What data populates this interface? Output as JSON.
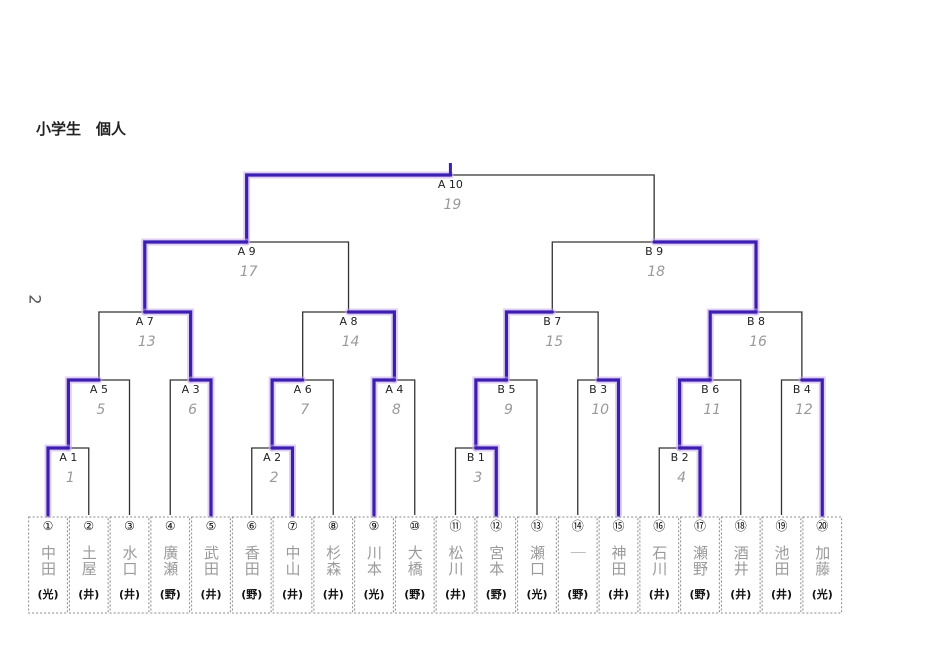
{
  "title": "小学生　個人",
  "margin_mark": "2",
  "colors": {
    "line": "#333333",
    "winner": "#3a1fb0",
    "winner_glow": "#c9a6ee",
    "handwriting": "#9a9a9a",
    "box": "#888888"
  },
  "players": [
    {
      "num": "①",
      "name": "中田",
      "team": "光"
    },
    {
      "num": "②",
      "name": "土屋",
      "team": "井"
    },
    {
      "num": "③",
      "name": "水口",
      "team": "井"
    },
    {
      "num": "④",
      "name": "廣瀬",
      "team": "野"
    },
    {
      "num": "⑤",
      "name": "武田",
      "team": "井"
    },
    {
      "num": "⑥",
      "name": "香田",
      "team": "野"
    },
    {
      "num": "⑦",
      "name": "中山",
      "team": "井"
    },
    {
      "num": "⑧",
      "name": "杉森",
      "team": "井"
    },
    {
      "num": "⑨",
      "name": "川本",
      "team": "光"
    },
    {
      "num": "⑩",
      "name": "大橋",
      "team": "野"
    },
    {
      "num": "⑪",
      "name": "松川",
      "team": "井"
    },
    {
      "num": "⑫",
      "name": "宮本",
      "team": "野"
    },
    {
      "num": "⑬",
      "name": "瀬口",
      "team": "光"
    },
    {
      "num": "⑭",
      "name": "｜",
      "team": "野"
    },
    {
      "num": "⑮",
      "name": "神田",
      "team": "井"
    },
    {
      "num": "⑯",
      "name": "石川",
      "team": "井"
    },
    {
      "num": "⑰",
      "name": "瀬野",
      "team": "野"
    },
    {
      "num": "⑱",
      "name": "酒井",
      "team": "井"
    },
    {
      "num": "⑲",
      "name": "池田",
      "team": "井"
    },
    {
      "num": "⑳",
      "name": "加藤",
      "team": "光"
    }
  ],
  "matches": [
    {
      "id": "A1",
      "label": "A 1",
      "order": "1"
    },
    {
      "id": "A2",
      "label": "A 2",
      "order": "2"
    },
    {
      "id": "B1",
      "label": "B 1",
      "order": "3"
    },
    {
      "id": "B2",
      "label": "B 2",
      "order": "4"
    },
    {
      "id": "A5",
      "label": "A 5",
      "order": "5"
    },
    {
      "id": "A3",
      "label": "A 3",
      "order": "6"
    },
    {
      "id": "A6",
      "label": "A 6",
      "order": "7"
    },
    {
      "id": "A4",
      "label": "A 4",
      "order": "8"
    },
    {
      "id": "B5",
      "label": "B 5",
      "order": "9"
    },
    {
      "id": "B3",
      "label": "B 3",
      "order": "10"
    },
    {
      "id": "B6",
      "label": "B 6",
      "order": "11"
    },
    {
      "id": "B4",
      "label": "B 4",
      "order": "12"
    },
    {
      "id": "A7",
      "label": "A 7",
      "order": "13"
    },
    {
      "id": "A8",
      "label": "A 8",
      "order": "14"
    },
    {
      "id": "B7",
      "label": "B 7",
      "order": "15"
    },
    {
      "id": "B8",
      "label": "B 8",
      "order": "16"
    },
    {
      "id": "A9",
      "label": "A 9",
      "order": "17"
    },
    {
      "id": "B9",
      "label": "B 9",
      "order": "18"
    },
    {
      "id": "A10",
      "label": "A 10",
      "order": "19"
    }
  ]
}
